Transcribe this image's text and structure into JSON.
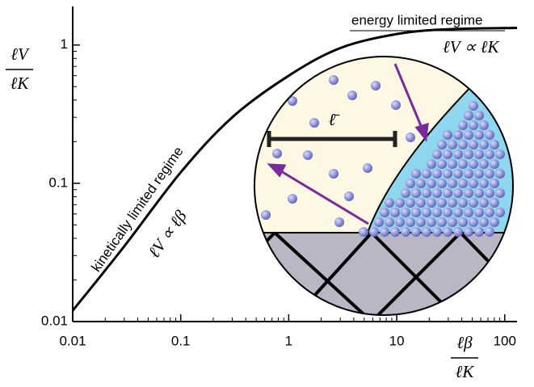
{
  "chart_data": {
    "type": "line",
    "x_label": {
      "numerator": "ℓβ",
      "denominator": "ℓK"
    },
    "y_label": {
      "numerator": "ℓV",
      "denominator": "ℓK"
    },
    "annotations": {
      "energy": "energy limited regime",
      "energy_law": "ℓV ∝ ℓK",
      "kinetic": "kinetically limited regime",
      "kinetic_law": "ℓV ∝ ℓβ",
      "mean_free_path": "ℓ̄"
    },
    "log_x": true,
    "log_y": true,
    "xlim": [
      0.01,
      130
    ],
    "ylim": [
      0.01,
      1.9
    ],
    "xticks": [
      0.01,
      0.1,
      1,
      10,
      100
    ],
    "yticks": [
      0.01,
      0.1,
      1
    ],
    "xminorticks": [
      0.02,
      0.03,
      0.04,
      0.05,
      0.06,
      0.07,
      0.08,
      0.09,
      0.2,
      0.3,
      0.4,
      0.5,
      0.6,
      0.7,
      0.8,
      0.9,
      2,
      3,
      4,
      5,
      6,
      7,
      8,
      9,
      20,
      30,
      40,
      50,
      60,
      70,
      80,
      90
    ],
    "yminorticks": [
      0.02,
      0.03,
      0.04,
      0.05,
      0.06,
      0.07,
      0.08,
      0.09,
      0.2,
      0.3,
      0.4,
      0.5,
      0.6,
      0.7,
      0.8,
      0.9
    ],
    "series": [
      {
        "color": "#000000",
        "x": [
          0.01,
          0.03,
          0.1,
          0.3,
          1,
          3,
          10,
          30,
          130
        ],
        "values": [
          0.012,
          0.035,
          0.12,
          0.3,
          0.6,
          0.95,
          1.2,
          1.3,
          1.33
        ]
      }
    ]
  }
}
